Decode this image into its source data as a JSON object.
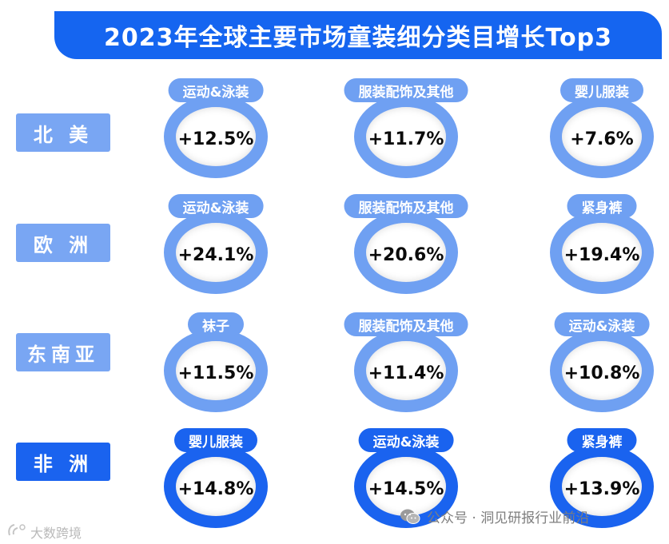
{
  "title": "2023年全球主要市场童装细分类目增长Top3",
  "colors": {
    "primary": "#1565f0",
    "light": "#6fa0f2",
    "region_light": "#79a6f3",
    "region_dark": "#1a63ef"
  },
  "rows": [
    {
      "region": "北 美",
      "style": "light",
      "items": [
        {
          "category": "运动&泳装",
          "growth": "+12.5%"
        },
        {
          "category": "服装配饰及其他",
          "growth": "+11.7%"
        },
        {
          "category": "婴儿服装",
          "growth": "+7.6%"
        }
      ]
    },
    {
      "region": "欧 洲",
      "style": "light",
      "items": [
        {
          "category": "运动&泳装",
          "growth": "+24.1%"
        },
        {
          "category": "服装配饰及其他",
          "growth": "+20.6%"
        },
        {
          "category": "紧身裤",
          "growth": "+19.4%"
        }
      ]
    },
    {
      "region": "东南亚",
      "style": "light",
      "items": [
        {
          "category": "袜子",
          "growth": "+11.5%"
        },
        {
          "category": "服装配饰及其他",
          "growth": "+11.4%"
        },
        {
          "category": "运动&泳装",
          "growth": "+10.8%"
        }
      ]
    },
    {
      "region": "非 洲",
      "style": "dark",
      "items": [
        {
          "category": "婴儿服装",
          "growth": "+14.8%"
        },
        {
          "category": "运动&泳装",
          "growth": "+14.5%"
        },
        {
          "category": "紧身裤",
          "growth": "+13.9%"
        }
      ]
    }
  ],
  "watermarks": {
    "right": "公众号 · 洞见研报行业前沿",
    "left": "大数跨境",
    "right_icon": "wechat-icon",
    "left_icon": "brand-logo-icon"
  }
}
